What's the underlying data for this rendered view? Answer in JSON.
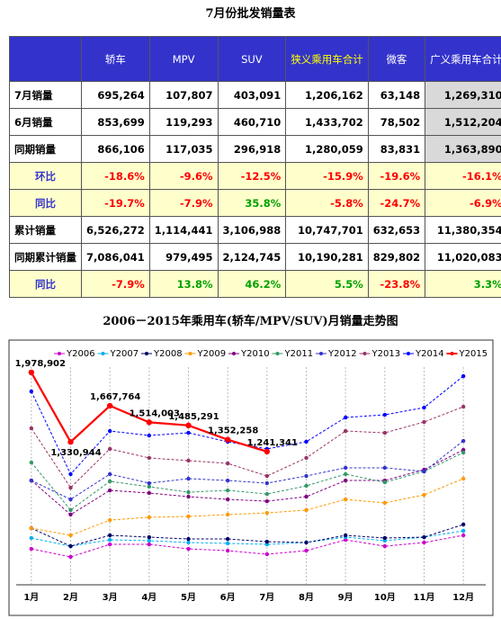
{
  "table": {
    "title": "7月份批发销量表",
    "header": [
      "",
      "轿车",
      "MPV",
      "SUV",
      "狭义乘用车合计",
      "微客",
      "广义乘用车合计"
    ],
    "rows": [
      [
        "7月销量",
        "695,264",
        "107,807",
        "403,091",
        "1,206,162",
        "63,148",
        "1,269,310"
      ],
      [
        "6月销量",
        "853,699",
        "119,293",
        "460,710",
        "1,433,702",
        "78,502",
        "1,512,204"
      ],
      [
        "同期销量",
        "866,106",
        "117,035",
        "296,918",
        "1,280,059",
        "83,831",
        "1,363,890"
      ],
      [
        "环比",
        "-18.6%",
        "-9.6%",
        "-12.5%",
        "-15.9%",
        "-19.6%",
        "-16.1%"
      ],
      [
        "同比",
        "-19.7%",
        "-7.9%",
        "35.8%",
        "-5.8%",
        "-24.7%",
        "-6.9%"
      ],
      [
        "累计销量",
        "6,526,272",
        "1,114,441",
        "3,106,988",
        "10,747,701",
        "632,653",
        "11,380,354"
      ],
      [
        "同期累计销量",
        "7,086,041",
        "979,495",
        "2,124,745",
        "10,190,281",
        "829,802",
        "11,020,083"
      ],
      [
        "同比",
        "-7.9%",
        "13.8%",
        "46.2%",
        "5.5%",
        "-23.8%",
        "3.3%"
      ]
    ]
  },
  "chart_data": {
    "type": "line",
    "title": "2006－2015年乘用车(轿车/MPV/SUV)月销量走势图",
    "categories": [
      "1月",
      "2月",
      "3月",
      "4月",
      "5月",
      "6月",
      "7月",
      "8月",
      "9月",
      "10月",
      "11月",
      "12月"
    ],
    "ylim": [
      0,
      2150000
    ],
    "series": [
      {
        "name": "Y2006",
        "color": "#cc00cc",
        "values": [
          335000,
          260000,
          377000,
          377000,
          335000,
          318000,
          285000,
          318000,
          419000,
          360000,
          394000,
          461000
        ]
      },
      {
        "name": "Y2007",
        "color": "#00b0f0",
        "values": [
          436000,
          360000,
          419000,
          411000,
          394000,
          386000,
          377000,
          394000,
          444000,
          411000,
          444000,
          503000
        ]
      },
      {
        "name": "Y2008",
        "color": "#000066",
        "values": [
          528000,
          360000,
          461000,
          444000,
          427000,
          427000,
          402000,
          394000,
          461000,
          436000,
          444000,
          562000
        ]
      },
      {
        "name": "Y2009",
        "color": "#ff9900",
        "values": [
          528000,
          461000,
          603000,
          629000,
          637000,
          654000,
          670000,
          696000,
          796000,
          763000,
          838000,
          989000
        ]
      },
      {
        "name": "Y2010",
        "color": "#800080",
        "values": [
          972000,
          654000,
          880000,
          855000,
          821000,
          796000,
          779000,
          821000,
          972000,
          972000,
          1073000,
          1257000
        ]
      },
      {
        "name": "Y2011",
        "color": "#339966",
        "values": [
          1140000,
          696000,
          964000,
          914000,
          863000,
          880000,
          846000,
          922000,
          1031000,
          955000,
          1056000,
          1232000
        ]
      },
      {
        "name": "Y2012",
        "color": "#3333cc",
        "values": [
          972000,
          796000,
          1031000,
          947000,
          989000,
          972000,
          947000,
          1014000,
          1090000,
          1090000,
          1056000,
          1341000
        ]
      },
      {
        "name": "Y2013",
        "color": "#993366",
        "values": [
          1458000,
          905000,
          1266000,
          1182000,
          1157000,
          1131000,
          1014000,
          1182000,
          1433000,
          1416000,
          1517000,
          1659000
        ]
      },
      {
        "name": "Y2014",
        "color": "#0000ff",
        "values": [
          1802000,
          1031000,
          1433000,
          1391000,
          1416000,
          1333000,
          1266000,
          1333000,
          1559000,
          1584000,
          1651000,
          1944000
        ]
      },
      {
        "name": "Y2015",
        "color": "#ff0000",
        "values": [
          1978902,
          1330944,
          1667764,
          1514003,
          1485291,
          1352258,
          1241341,
          null,
          null,
          null,
          null,
          null
        ],
        "value_labels": [
          "1,978,902",
          "1,330,944",
          "1,667,764",
          "1,514,003",
          "1,485,291",
          "1,352,258",
          "1,241,341",
          null,
          null,
          null,
          null,
          null
        ]
      }
    ]
  }
}
